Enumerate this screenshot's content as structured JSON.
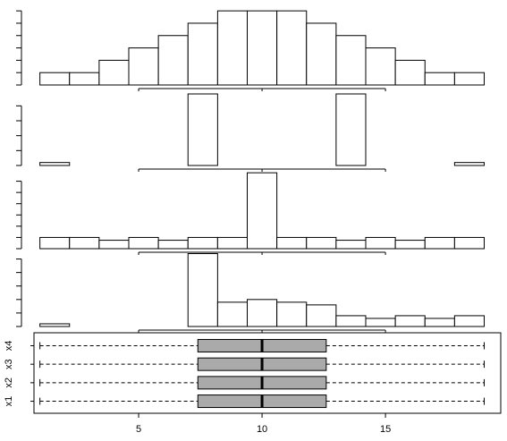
{
  "chart_data": [
    {
      "type": "histogram",
      "bins": [
        1,
        2.2,
        3.4,
        4.6,
        5.8,
        7,
        8.2,
        9.4,
        10.6,
        11.8,
        13,
        14.2,
        15.4,
        16.6,
        17.8,
        19
      ],
      "values": [
        1,
        1,
        2,
        3,
        4,
        5,
        6,
        6,
        6,
        5,
        4,
        3,
        2,
        1,
        1
      ],
      "color": "#ffffff",
      "xlim": [
        0.76,
        19.67
      ],
      "xticks": [
        5,
        10,
        15
      ],
      "ylim": [
        0,
        6.3
      ],
      "yticks": [
        0,
        1,
        2,
        3,
        4,
        5,
        6
      ]
    },
    {
      "type": "histogram",
      "bins": [
        1,
        2.2,
        3.4,
        4.6,
        5.8,
        7,
        8.2,
        9.4,
        10.6,
        11.8,
        13,
        14.2,
        15.4,
        16.6,
        17.8,
        19
      ],
      "values": [
        1,
        0,
        0,
        0,
        0,
        24,
        0,
        0,
        0,
        0,
        24,
        0,
        0,
        0,
        1
      ],
      "color": "#ffffff",
      "xlim": [
        0.76,
        19.67
      ],
      "xticks": [
        5,
        10,
        15
      ],
      "ylim": [
        0,
        25.5
      ],
      "yticks": [
        0,
        5,
        10,
        15,
        20
      ]
    },
    {
      "type": "histogram",
      "bins": [
        1,
        2.2,
        3.4,
        4.6,
        5.8,
        7,
        8.2,
        9.4,
        10.6,
        11.8,
        13,
        14.2,
        15.4,
        16.6,
        17.8,
        19
      ],
      "values": [
        4,
        4,
        3,
        4,
        3,
        4,
        4,
        27,
        4,
        4,
        3,
        4,
        3,
        4,
        4
      ],
      "color": "#ffffff",
      "xlim": [
        0.76,
        19.67
      ],
      "xticks": [
        5,
        10,
        15
      ],
      "ylim": [
        0,
        28
      ],
      "yticks": [
        0,
        4,
        8,
        12,
        16,
        20,
        24
      ]
    },
    {
      "type": "histogram",
      "bins": [
        1,
        2.2,
        3.4,
        4.6,
        5.8,
        7,
        8.2,
        9.4,
        10.6,
        11.8,
        13,
        14.2,
        15.4,
        16.6,
        17.8,
        19
      ],
      "values": [
        1,
        0,
        0,
        0,
        0,
        27,
        9,
        10,
        9,
        8,
        4,
        3,
        4,
        3,
        4
      ],
      "color": "#ffffff",
      "xlim": [
        0.76,
        19.67
      ],
      "xticks": [
        5,
        10,
        15
      ],
      "ylim": [
        0,
        27.5
      ],
      "yticks": [
        0,
        5,
        10,
        15,
        20,
        25
      ]
    },
    {
      "type": "boxplot",
      "categories": [
        "x1",
        "x2",
        "x3",
        "x4"
      ],
      "color": "#aaaaaa",
      "xlim": [
        0.76,
        19.67
      ],
      "xticks": [
        5,
        10,
        15
      ],
      "series": [
        {
          "min": 1,
          "q1": 7.4,
          "median": 10,
          "q3": 12.6,
          "max": 19
        },
        {
          "min": 1,
          "q1": 7.4,
          "median": 10,
          "q3": 12.6,
          "max": 19
        },
        {
          "min": 1,
          "q1": 7.4,
          "median": 10,
          "q3": 12.6,
          "max": 19
        },
        {
          "min": 1,
          "q1": 7.4,
          "median": 10,
          "q3": 12.6,
          "max": 19
        }
      ]
    }
  ]
}
